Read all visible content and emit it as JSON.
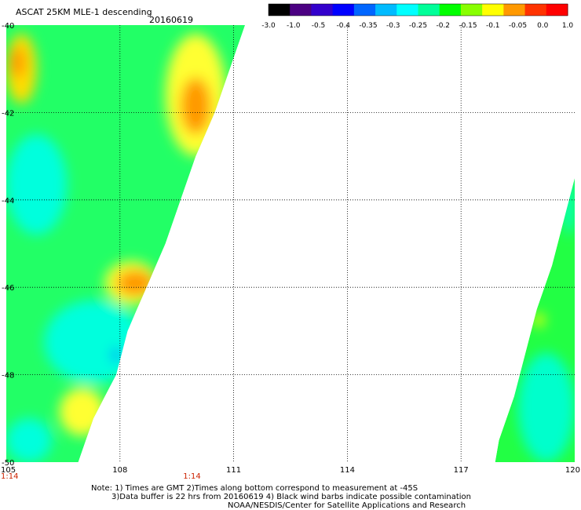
{
  "header": {
    "title": "ASCAT 25KM MLE-1 descending",
    "date": "20160619"
  },
  "colorbar": {
    "tick_labels": [
      "-3.0",
      "-1.0",
      "-0.5",
      "-0.4",
      "-0.35",
      "-0.3",
      "-0.25",
      "-0.2",
      "-0.15",
      "-0.1",
      "-0.05",
      "0.0",
      "1.0"
    ],
    "colors": [
      "#000000",
      "#4b0082",
      "#3300cc",
      "#0000ff",
      "#0066ff",
      "#00bbff",
      "#00ffff",
      "#00ff99",
      "#00ff00",
      "#88ff00",
      "#ffff00",
      "#ff9900",
      "#ff3300",
      "#ff0000"
    ]
  },
  "time_labels": [
    {
      "label": "1:14",
      "lon": 105
    },
    {
      "label": "1:14",
      "lon": 109.9
    }
  ],
  "notes": {
    "line1": "Note: 1) Times are GMT 2)Times along bottom correspond to measurement at -45S",
    "line2": "3)Data buffer is 22 hrs from 20160619 4) Black wind barbs indicate possible contamination",
    "line3": "NOAA/NESDIS/Center for Satellite Applications and Research"
  },
  "chart_data": {
    "type": "heatmap",
    "title": "ASCAT 25KM MLE-1 descending",
    "subtitle": "20160619",
    "x_ticks": [
      "105",
      "108",
      "111",
      "114",
      "117",
      "120"
    ],
    "y_ticks": [
      "-40",
      "-42",
      "-44",
      "-46",
      "-48",
      "-50"
    ],
    "xlim": [
      105,
      120
    ],
    "ylim": [
      -50,
      -40
    ],
    "grid": true,
    "swaths": [
      {
        "lat_edge": [
          [
            -40.0,
            111.3
          ],
          [
            -41.0,
            110.9
          ],
          [
            -42.0,
            110.5
          ],
          [
            -43.0,
            110.0
          ],
          [
            -44.0,
            109.6
          ],
          [
            -45.0,
            109.2
          ],
          [
            -46.0,
            108.7
          ],
          [
            -47.0,
            108.2
          ],
          [
            -48.0,
            107.9
          ],
          [
            -49.0,
            107.3
          ],
          [
            -50.0,
            106.9
          ]
        ],
        "side": "west",
        "background": "#22ff66",
        "patches": [
          {
            "label": "yellow-orange",
            "color": "#ffdd00",
            "lat": [
              -40.2,
              -41.8
            ],
            "lon": [
              105.0,
              105.8
            ]
          },
          {
            "label": "orange",
            "color": "#ff9900",
            "lat": [
              -40.5,
              -41.2
            ],
            "lon": [
              105.1,
              105.5
            ]
          },
          {
            "label": "yellow",
            "color": "#ffff33",
            "lat": [
              -40.2,
              -43.0
            ],
            "lon": [
              109.2,
              110.8
            ]
          },
          {
            "label": "orange",
            "color": "#ff9900",
            "lat": [
              -41.2,
              -42.5
            ],
            "lon": [
              109.6,
              110.4
            ]
          },
          {
            "label": "cyan",
            "color": "#00ffdd",
            "lat": [
              -42.5,
              -44.8
            ],
            "lon": [
              105.0,
              106.6
            ]
          },
          {
            "label": "cyan",
            "color": "#00ffdd",
            "lat": [
              -46.3,
              -48.2
            ],
            "lon": [
              106.0,
              108.6
            ]
          },
          {
            "label": "yellow",
            "color": "#ffff33",
            "lat": [
              -45.4,
              -46.4
            ],
            "lon": [
              107.6,
              109.0
            ]
          },
          {
            "label": "orange",
            "color": "#ff9900",
            "lat": [
              -45.6,
              -46.2
            ],
            "lon": [
              107.9,
              108.9
            ]
          },
          {
            "label": "blue",
            "color": "#0066ff",
            "lat": [
              -47.4,
              -47.7
            ],
            "lon": [
              107.8,
              108.0
            ]
          },
          {
            "label": "yellow",
            "color": "#ffff33",
            "lat": [
              -48.3,
              -49.4
            ],
            "lon": [
              106.4,
              107.6
            ]
          },
          {
            "label": "cyan",
            "color": "#00ffdd",
            "lat": [
              -49.0,
              -50.0
            ],
            "lon": [
              105.0,
              106.2
            ]
          }
        ]
      },
      {
        "lat_edge": [
          [
            -43.5,
            120.0
          ],
          [
            -44.5,
            119.7
          ],
          [
            -45.5,
            119.4
          ],
          [
            -46.5,
            119.0
          ],
          [
            -47.5,
            118.7
          ],
          [
            -48.5,
            118.4
          ],
          [
            -49.5,
            118.0
          ],
          [
            -50.0,
            117.9
          ]
        ],
        "side": "east",
        "background": "#22ff44",
        "patches": [
          {
            "label": "cyan",
            "color": "#00ffcc",
            "lat": [
              -43.5,
              -44.8
            ],
            "lon": [
              119.7,
              120.0
            ]
          },
          {
            "label": "cyan",
            "color": "#00ffcc",
            "lat": [
              -47.5,
              -50.0
            ],
            "lon": [
              118.5,
              120.0
            ]
          },
          {
            "label": "yellow",
            "color": "#ffff00",
            "lat": [
              -46.6,
              -46.9
            ],
            "lon": [
              118.9,
              119.2
            ]
          }
        ]
      }
    ]
  }
}
